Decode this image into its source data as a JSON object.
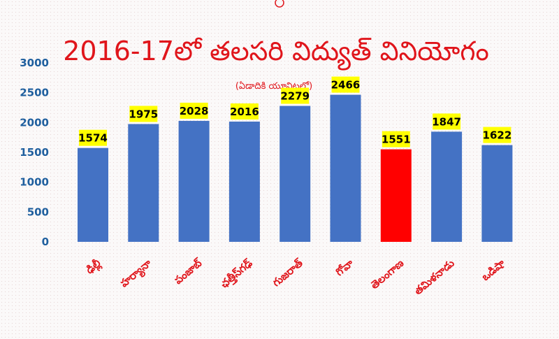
{
  "chart_data": {
    "type": "bar",
    "title": "2016-17లో తలసరి విద్యుత్ వినియోగం",
    "subtitle": "(ఏడాదికి యూనిట్లలో)",
    "categories": [
      "ఢిల్లీ",
      "హర్యానా",
      "పంజాబ్",
      "ఛత్తీస్‌గఢ్",
      "గుజరాత్",
      "గోవా",
      "తెలంగాణ",
      "తమిళనాడు",
      "ఒడిషా"
    ],
    "values": [
      1574,
      1975,
      2028,
      2016,
      2279,
      2466,
      1551,
      1847,
      1622
    ],
    "ylim": [
      0,
      3000
    ],
    "yticks": [
      0,
      500,
      1000,
      1500,
      2000,
      2500,
      3000
    ],
    "xlabel": "",
    "ylabel": "",
    "grid": false,
    "colors": {
      "bar": "#4472c4",
      "highlight_bar": "#ff0000",
      "highlight_index": 6,
      "label_bg": "#ffff00",
      "title": "#e0151b",
      "tick": "#1f5f9e"
    }
  }
}
